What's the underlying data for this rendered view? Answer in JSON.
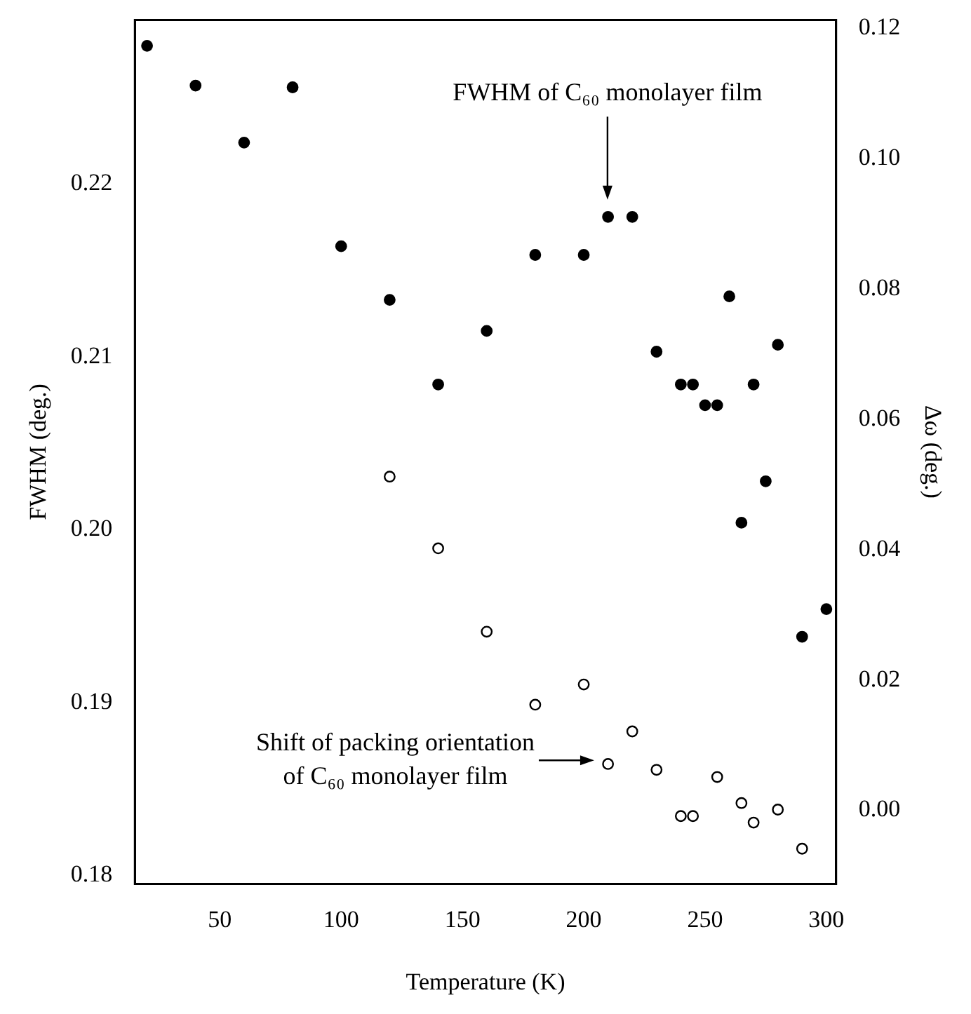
{
  "chart_data": {
    "type": "scatter",
    "xlabel": "Temperature (K)",
    "ylabel": "FWHM (deg.)",
    "y2label": "Δω (deg.)",
    "xlim": [
      15,
      304
    ],
    "xticks": [
      50,
      100,
      150,
      200,
      250,
      300
    ],
    "ylim": [
      0.1795,
      0.2295
    ],
    "yticks": [
      0.18,
      0.19,
      {
        "value": 0.2,
        "label": "0.20"
      },
      0.21,
      0.22
    ],
    "y2lim": [
      -0.0113,
      0.1213
    ],
    "y2ticks": [
      {
        "value": 0,
        "label": "0.00"
      },
      0.02,
      0.04,
      0.06,
      0.08,
      {
        "value": 0.1,
        "label": "0.10"
      },
      0.12
    ],
    "grid": false,
    "legend": false,
    "marker": "circle",
    "series": [
      {
        "color": "#000000",
        "x": [
          20,
          40,
          60,
          80,
          100,
          120,
          140,
          160,
          180,
          200,
          210,
          220,
          230,
          240,
          245,
          250,
          255,
          260,
          265,
          270,
          275,
          280,
          290,
          300
        ],
        "values": [
          0.228,
          0.2257,
          0.2224,
          0.2256,
          0.2164,
          0.2133,
          0.2084,
          0.2115,
          0.2159,
          0.2159,
          0.2181,
          0.2181,
          0.2103,
          0.2084,
          0.2084,
          0.2072,
          0.2072,
          0.2135,
          0.2004,
          0.2084,
          0.2028,
          0.2107,
          0.1938,
          0.1954
        ]
      },
      {
        "color": "#ffffff",
        "axis": "y2",
        "x": [
          120,
          140,
          160,
          180,
          200,
          210,
          220,
          230,
          240,
          245,
          255,
          265,
          270,
          280,
          290
        ],
        "values": [
          0.0512,
          0.0402,
          0.0274,
          0.0162,
          0.0193,
          0.0071,
          0.0121,
          0.0062,
          -0.0009,
          -0.0009,
          0.0051,
          0.0011,
          -0.0019,
          0.0001,
          -0.0059
        ]
      }
    ],
    "annotations": [
      "FWHM of C₆₀ monolayer film",
      "Shift of packing orientation of C₆₀ monolayer film"
    ]
  }
}
